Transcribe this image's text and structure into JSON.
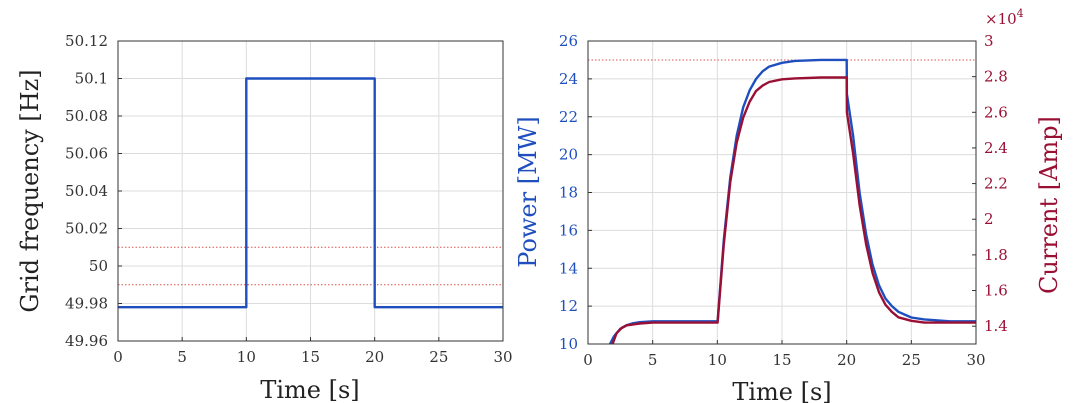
{
  "colors": {
    "frequency_line": "#1f4fbf",
    "power_line": "#1f4fbf",
    "current_line": "#9a1035",
    "threshold_line": "#d9534f",
    "grid": "#dcdcdc",
    "axis": "#333333",
    "power_axis": "#1f4fbf",
    "current_axis": "#9a1035"
  },
  "chart_data": [
    {
      "type": "line",
      "xlabel": "Time [s]",
      "ylabel": "Grid frequency [Hz]",
      "xlim": [
        0,
        30
      ],
      "ylim": [
        49.96,
        50.12
      ],
      "grid": true,
      "x_ticks": [
        0,
        5,
        10,
        15,
        20,
        25,
        30
      ],
      "x_tick_labels": [
        "0",
        "5",
        "10",
        "15",
        "20",
        "25",
        "30"
      ],
      "y_ticks": [
        49.96,
        49.98,
        50.0,
        50.02,
        50.04,
        50.06,
        50.08,
        50.1,
        50.12
      ],
      "y_tick_labels": [
        "49.96",
        "49.98",
        "50",
        "50.02",
        "50.04",
        "50.06",
        "50.08",
        "50.1",
        "50.12"
      ],
      "series": [
        {
          "x": [
            0,
            10,
            10,
            20,
            20,
            30
          ],
          "y": [
            49.978,
            49.978,
            50.1,
            50.1,
            49.978,
            49.978
          ]
        }
      ],
      "reference_lines": [
        {
          "orientation": "horizontal",
          "y": 50.01,
          "style": "dotted"
        },
        {
          "orientation": "horizontal",
          "y": 49.99,
          "style": "dotted"
        }
      ]
    },
    {
      "type": "line",
      "xlabel": "Time [s]",
      "ylabel": "Power [MW]",
      "y2label": "Current [Amp]",
      "y2_multiplier": "×10",
      "y2_exponent": "4",
      "xlim": [
        0,
        30
      ],
      "ylim": [
        10,
        26
      ],
      "y2lim": [
        1.3,
        3.0
      ],
      "grid": true,
      "x_ticks": [
        0,
        5,
        10,
        15,
        20,
        25,
        30
      ],
      "x_tick_labels": [
        "0",
        "5",
        "10",
        "15",
        "20",
        "25",
        "30"
      ],
      "y_ticks": [
        10,
        12,
        14,
        16,
        18,
        20,
        22,
        24,
        26
      ],
      "y_tick_labels": [
        "10",
        "12",
        "14",
        "16",
        "18",
        "20",
        "22",
        "24",
        "26"
      ],
      "y2_ticks": [
        1.4,
        1.6,
        1.8,
        2.0,
        2.2,
        2.4,
        2.6,
        2.8,
        3.0
      ],
      "y2_tick_labels": [
        "1.4",
        "1.6",
        "1.8",
        "2",
        "2.2",
        "2.4",
        "2.6",
        "2.8",
        "3"
      ],
      "series": [
        {
          "axis": "left",
          "x": [
            1.7,
            2.0,
            2.5,
            3.0,
            3.5,
            4.0,
            5.0,
            6.0,
            8.0,
            10.0,
            10.02,
            10.5,
            11.0,
            11.5,
            12.0,
            12.5,
            13.0,
            13.5,
            14.0,
            15.0,
            16.0,
            18.0,
            20.0,
            20.02,
            20.5,
            21.0,
            21.5,
            22.0,
            22.5,
            23.0,
            23.5,
            24.0,
            25.0,
            26.0,
            28.0,
            30.0
          ],
          "y": [
            10.0,
            10.4,
            10.8,
            11.0,
            11.1,
            11.15,
            11.2,
            11.2,
            11.2,
            11.2,
            11.2,
            15.5,
            18.8,
            21.0,
            22.5,
            23.4,
            24.0,
            24.4,
            24.65,
            24.85,
            24.95,
            25.0,
            25.0,
            23.2,
            21.0,
            18.0,
            15.8,
            14.2,
            13.1,
            12.4,
            12.0,
            11.7,
            11.4,
            11.3,
            11.2,
            11.2
          ]
        },
        {
          "axis": "right",
          "x": [
            1.9,
            2.2,
            2.6,
            3.0,
            3.5,
            4.0,
            5.0,
            6.0,
            8.0,
            10.0,
            10.02,
            10.5,
            11.0,
            11.5,
            12.0,
            12.5,
            13.0,
            13.5,
            14.0,
            15.0,
            16.0,
            18.0,
            20.0,
            20.02,
            20.5,
            21.0,
            21.5,
            22.0,
            22.5,
            23.0,
            23.5,
            24.0,
            25.0,
            26.0,
            28.0,
            30.0
          ],
          "y": [
            1.3,
            1.36,
            1.39,
            1.405,
            1.41,
            1.415,
            1.42,
            1.42,
            1.42,
            1.42,
            1.42,
            1.86,
            2.21,
            2.43,
            2.57,
            2.66,
            2.72,
            2.75,
            2.77,
            2.785,
            2.79,
            2.795,
            2.795,
            2.6,
            2.37,
            2.08,
            1.86,
            1.7,
            1.59,
            1.52,
            1.48,
            1.45,
            1.43,
            1.42,
            1.42,
            1.42
          ]
        }
      ],
      "reference_lines": [
        {
          "orientation": "horizontal",
          "y": 25,
          "style": "dotted"
        }
      ]
    }
  ]
}
